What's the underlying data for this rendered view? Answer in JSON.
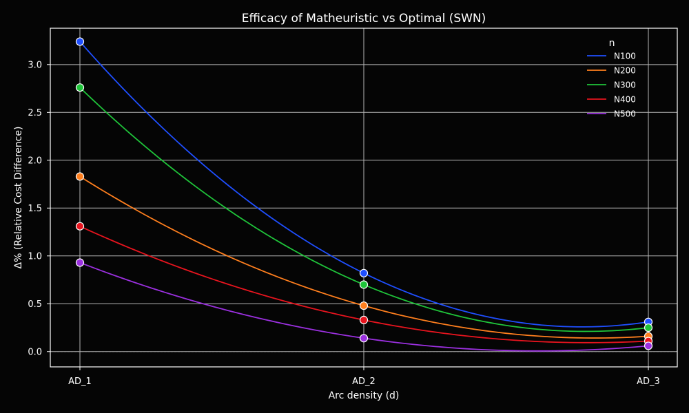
{
  "chart_data": {
    "type": "line",
    "title": "Efficacy of Matheuristic vs Optimal (SWN)",
    "xlabel": "Arc density (d)",
    "ylabel": "Δ% (Relative Cost Difference)",
    "categories": [
      "AD_1",
      "AD_2",
      "AD_3"
    ],
    "ylim": [
      -0.16,
      3.38
    ],
    "yticks": [
      0.0,
      0.5,
      1.0,
      1.5,
      2.0,
      2.5,
      3.0
    ],
    "ytick_labels": [
      "0.0",
      "0.5",
      "1.0",
      "1.5",
      "2.0",
      "2.5",
      "3.0"
    ],
    "grid": true,
    "zero_line": true,
    "smooth": true,
    "legend": {
      "title": "n",
      "placement": "top-right"
    },
    "series": [
      {
        "name": "N100",
        "color": "#1f4fff",
        "values": [
          3.24,
          0.82,
          0.31
        ]
      },
      {
        "name": "N200",
        "color": "#ff7f1e",
        "values": [
          1.83,
          0.48,
          0.16
        ]
      },
      {
        "name": "N300",
        "color": "#1fc43a",
        "values": [
          2.76,
          0.7,
          0.25
        ]
      },
      {
        "name": "N400",
        "color": "#e8141e",
        "values": [
          1.31,
          0.33,
          0.11
        ]
      },
      {
        "name": "N500",
        "color": "#9b30e0",
        "values": [
          0.93,
          0.14,
          0.06
        ]
      }
    ]
  }
}
